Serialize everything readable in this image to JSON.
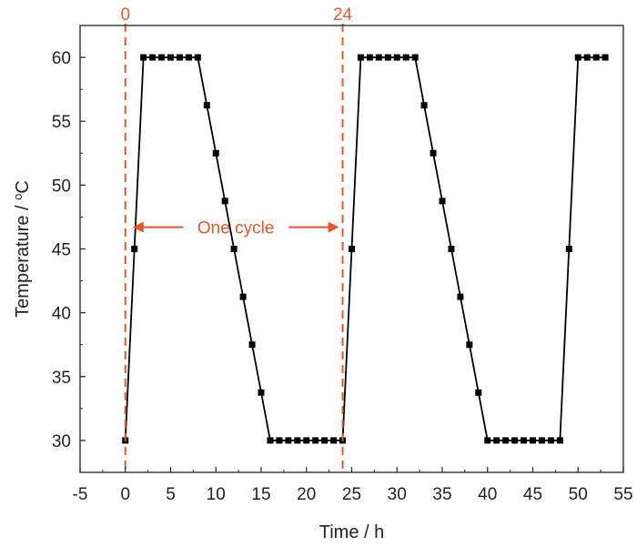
{
  "chart_data": {
    "type": "line",
    "title": "",
    "xlabel": "Time / h",
    "ylabel_main": "Temperature / ",
    "ylabel_sup": "o",
    "ylabel_unit": "C",
    "xlim": [
      -5,
      55
    ],
    "ylim": [
      27.5,
      62.5
    ],
    "xticks": [
      -5,
      0,
      5,
      10,
      15,
      20,
      25,
      30,
      35,
      40,
      45,
      50,
      55
    ],
    "yticks": [
      30,
      35,
      40,
      45,
      50,
      55,
      60
    ],
    "grid": false,
    "legend": "none",
    "series": [
      {
        "color": "#000000",
        "marker": "square",
        "x": [
          0,
          1,
          2,
          3,
          4,
          5,
          6,
          7,
          8,
          9,
          10,
          11,
          12,
          13,
          14,
          15,
          16,
          17,
          18,
          19,
          20,
          21,
          22,
          23,
          24,
          25,
          26,
          27,
          28,
          29,
          30,
          31,
          32,
          33,
          34,
          35,
          36,
          37,
          38,
          39,
          40,
          41,
          42,
          43,
          44,
          45,
          46,
          47,
          48,
          49,
          50,
          51,
          52,
          53
        ],
        "y": [
          30,
          45,
          60,
          60,
          60,
          60,
          60,
          60,
          60,
          56.25,
          52.5,
          48.75,
          45,
          41.25,
          37.5,
          33.75,
          30,
          30,
          30,
          30,
          30,
          30,
          30,
          30,
          30,
          45,
          60,
          60,
          60,
          60,
          60,
          60,
          60,
          56.25,
          52.5,
          48.75,
          45,
          41.25,
          37.5,
          33.75,
          30,
          30,
          30,
          30,
          30,
          30,
          30,
          30,
          30,
          45,
          60,
          60,
          60,
          60
        ]
      }
    ],
    "annotations": {
      "color": "#e8562a",
      "vlines": [
        {
          "x": 0,
          "label": "0"
        },
        {
          "x": 24,
          "label": "24"
        }
      ],
      "arrow": {
        "x_start": 0,
        "x_end": 24,
        "y": 46.7,
        "label": "One cycle"
      }
    }
  }
}
